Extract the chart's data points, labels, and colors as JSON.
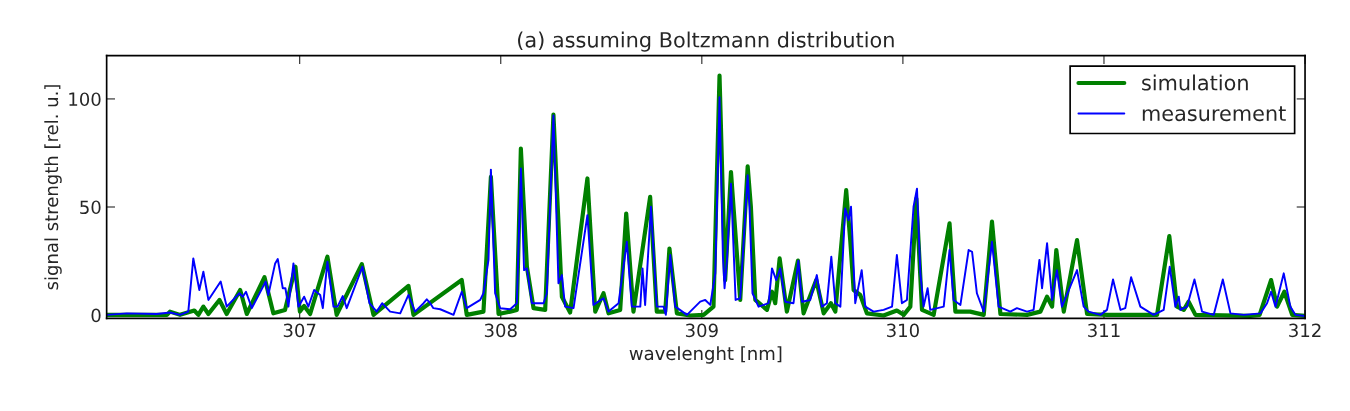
{
  "chart_data": {
    "type": "line",
    "title": "(a) assuming Boltzmann distribution",
    "xlabel": "wavelenght [nm]",
    "ylabel": "signal strength [rel. u.]",
    "xlim": [
      306.04,
      312
    ],
    "xticks": [
      307,
      308,
      309,
      310,
      311,
      312
    ],
    "ylim": [
      -1.5,
      120
    ],
    "yticks": [
      0,
      50,
      100
    ],
    "grid": false,
    "legend": "top right",
    "marker": "none",
    "line_style": "solid",
    "series": [
      {
        "name": "simulation",
        "color": "#008000",
        "x": [
          306.04,
          306.34,
          306.355,
          306.405,
          306.476,
          306.496,
          306.521,
          306.546,
          306.601,
          306.637,
          306.704,
          306.737,
          306.825,
          306.869,
          306.927,
          306.979,
          307.001,
          307.022,
          307.052,
          307.138,
          307.184,
          307.309,
          307.367,
          307.541,
          307.566,
          307.806,
          307.831,
          307.914,
          307.951,
          307.989,
          308.047,
          308.08,
          308.1,
          308.13,
          308.163,
          308.221,
          308.262,
          308.304,
          308.345,
          308.431,
          308.47,
          308.511,
          308.536,
          308.594,
          308.624,
          308.66,
          308.743,
          308.776,
          308.818,
          308.839,
          308.876,
          308.942,
          309.009,
          309.058,
          309.088,
          309.116,
          309.145,
          309.191,
          309.228,
          309.244,
          309.266,
          309.324,
          309.349,
          309.365,
          309.387,
          309.423,
          309.478,
          309.506,
          309.569,
          309.606,
          309.642,
          309.664,
          309.718,
          309.738,
          309.755,
          309.788,
          309.821,
          309.904,
          309.97,
          310.004,
          310.037,
          310.067,
          310.095,
          310.153,
          310.232,
          310.261,
          310.335,
          310.402,
          310.443,
          310.485,
          310.617,
          310.684,
          310.717,
          310.742,
          310.763,
          310.8,
          310.866,
          310.916,
          311.015,
          311.264,
          311.325,
          311.363,
          311.397,
          311.421,
          311.455,
          311.728,
          311.774,
          311.831,
          311.861,
          311.897,
          311.936,
          312.0
        ],
        "values": [
          0.1,
          0.1,
          1.6,
          0.1,
          2.1,
          0.1,
          3.9,
          0.5,
          7.0,
          0.5,
          11.6,
          0.5,
          17.5,
          0.8,
          2.4,
          22.4,
          1.6,
          4.2,
          0.5,
          27.0,
          0.1,
          23.6,
          0.1,
          13.5,
          0.1,
          16.2,
          0.1,
          1.6,
          63.9,
          0.5,
          1.6,
          2.4,
          77.0,
          22.4,
          3.2,
          2.4,
          92.8,
          8.5,
          1.2,
          63.2,
          1.6,
          10.1,
          0.8,
          2.4,
          47.0,
          1.6,
          54.7,
          1.6,
          1.6,
          30.8,
          0.8,
          -0.2,
          0.1,
          3.9,
          110.8,
          16.2,
          66.2,
          7.0,
          68.8,
          50.1,
          7.0,
          2.4,
          10.8,
          5.5,
          26.2,
          1.6,
          25.2,
          0.8,
          16.2,
          0.8,
          5.5,
          1.6,
          57.8,
          34.7,
          11.6,
          9.3,
          0.8,
          -0.2,
          2.1,
          0.1,
          3.9,
          53.9,
          2.4,
          0.1,
          42.4,
          1.6,
          1.6,
          0.1,
          43.2,
          0.5,
          0.1,
          1.6,
          8.5,
          3.9,
          30.1,
          1.6,
          34.7,
          0.5,
          0.1,
          0.1,
          36.5,
          3.9,
          2.4,
          6.2,
          0.1,
          -0.4,
          0.1,
          16.2,
          3.9,
          10.8,
          0.1,
          -0.4
        ]
      },
      {
        "name": "measurement",
        "color": "#0000ff",
        "x": [
          306.04,
          306.14,
          306.289,
          306.355,
          306.405,
          306.446,
          306.471,
          306.501,
          306.521,
          306.546,
          306.607,
          306.637,
          306.7,
          306.717,
          306.733,
          306.762,
          306.831,
          306.844,
          306.878,
          306.891,
          306.916,
          306.929,
          306.944,
          306.969,
          306.994,
          307.022,
          307.043,
          307.072,
          307.102,
          307.115,
          307.138,
          307.168,
          307.188,
          307.214,
          307.234,
          307.312,
          307.347,
          307.383,
          307.41,
          307.45,
          307.5,
          307.541,
          307.574,
          307.616,
          307.632,
          307.649,
          307.665,
          307.699,
          307.765,
          307.806,
          307.831,
          307.898,
          307.914,
          307.939,
          307.951,
          307.972,
          307.997,
          308.047,
          308.08,
          308.1,
          308.116,
          308.13,
          308.155,
          308.213,
          308.229,
          308.262,
          308.287,
          308.304,
          308.32,
          308.362,
          308.431,
          308.461,
          308.511,
          308.536,
          308.586,
          308.627,
          308.652,
          308.694,
          308.705,
          308.718,
          308.747,
          308.776,
          308.81,
          308.821,
          308.843,
          308.868,
          308.926,
          308.992,
          309.017,
          309.042,
          309.067,
          309.088,
          309.105,
          309.113,
          309.125,
          309.145,
          309.168,
          309.191,
          309.228,
          309.237,
          309.252,
          309.282,
          309.332,
          309.349,
          309.37,
          309.39,
          309.415,
          309.456,
          309.48,
          309.498,
          309.539,
          309.572,
          309.597,
          309.622,
          309.644,
          309.664,
          309.689,
          309.713,
          309.73,
          309.742,
          309.763,
          309.795,
          309.813,
          309.854,
          309.904,
          309.946,
          309.97,
          309.995,
          310.02,
          310.053,
          310.07,
          310.087,
          310.103,
          310.123,
          310.136,
          310.203,
          310.232,
          310.252,
          310.286,
          310.327,
          310.344,
          310.368,
          310.402,
          310.443,
          310.476,
          310.534,
          310.567,
          310.617,
          310.65,
          310.679,
          310.692,
          310.717,
          310.742,
          310.766,
          310.791,
          310.866,
          310.899,
          310.924,
          310.982,
          311.015,
          311.045,
          311.082,
          311.106,
          311.135,
          311.181,
          311.247,
          311.297,
          311.327,
          311.355,
          311.372,
          311.38,
          311.413,
          311.45,
          311.488,
          311.546,
          311.591,
          311.629,
          311.695,
          311.778,
          311.811,
          311.831,
          311.853,
          311.894,
          311.927,
          311.952,
          312.0
        ],
        "values": [
          0.1,
          0.8,
          0.5,
          1.2,
          0.1,
          1.6,
          26.2,
          11.6,
          20.1,
          7.0,
          15.5,
          3.9,
          10.1,
          8.5,
          10.8,
          3.2,
          15.5,
          9.3,
          23.9,
          25.9,
          12.4,
          12.4,
          3.9,
          23.9,
          3.9,
          8.5,
          3.9,
          11.6,
          9.3,
          3.2,
          24.7,
          3.9,
          3.9,
          8.8,
          3.2,
          22.4,
          5.5,
          1.6,
          5.5,
          1.6,
          0.8,
          9.3,
          1.6,
          5.5,
          7.3,
          5.5,
          3.2,
          2.7,
          0.1,
          10.8,
          3.2,
          7.0,
          10.1,
          25.5,
          67.3,
          10.1,
          3.2,
          2.7,
          5.5,
          67.8,
          20.8,
          21.6,
          5.5,
          5.5,
          10.1,
          92.4,
          14.7,
          18.5,
          3.9,
          3.2,
          46.2,
          4.7,
          7.8,
          1.6,
          5.5,
          33.9,
          3.9,
          3.9,
          21.6,
          4.7,
          50.1,
          3.9,
          3.9,
          0.1,
          27.8,
          3.9,
          0.1,
          6.2,
          7.0,
          4.7,
          19.3,
          100.8,
          27.0,
          12.4,
          25.5,
          60.8,
          7.0,
          7.8,
          64.7,
          50.1,
          10.1,
          3.9,
          5.5,
          21.6,
          16.2,
          21.6,
          6.2,
          5.5,
          25.2,
          6.2,
          7.0,
          18.5,
          3.9,
          5.5,
          27.0,
          5.5,
          3.9,
          49.3,
          43.9,
          50.1,
          5.5,
          20.8,
          3.9,
          1.6,
          2.4,
          3.9,
          27.8,
          5.5,
          7.0,
          50.1,
          58.5,
          19.3,
          3.9,
          12.4,
          2.4,
          3.9,
          30.1,
          7.0,
          4.7,
          30.1,
          29.3,
          10.1,
          1.6,
          33.9,
          3.9,
          1.6,
          3.2,
          1.6,
          2.4,
          25.5,
          12.4,
          33.2,
          7.0,
          20.8,
          3.9,
          20.8,
          3.9,
          1.6,
          0.1,
          2.4,
          16.5,
          2.4,
          3.2,
          17.5,
          3.9,
          0.1,
          2.4,
          22.4,
          3.9,
          8.5,
          2.4,
          3.9,
          16.5,
          1.6,
          0.1,
          16.5,
          0.8,
          0.1,
          0.8,
          5.5,
          10.8,
          3.9,
          19.3,
          3.9,
          0.1,
          -0.4
        ]
      }
    ]
  }
}
